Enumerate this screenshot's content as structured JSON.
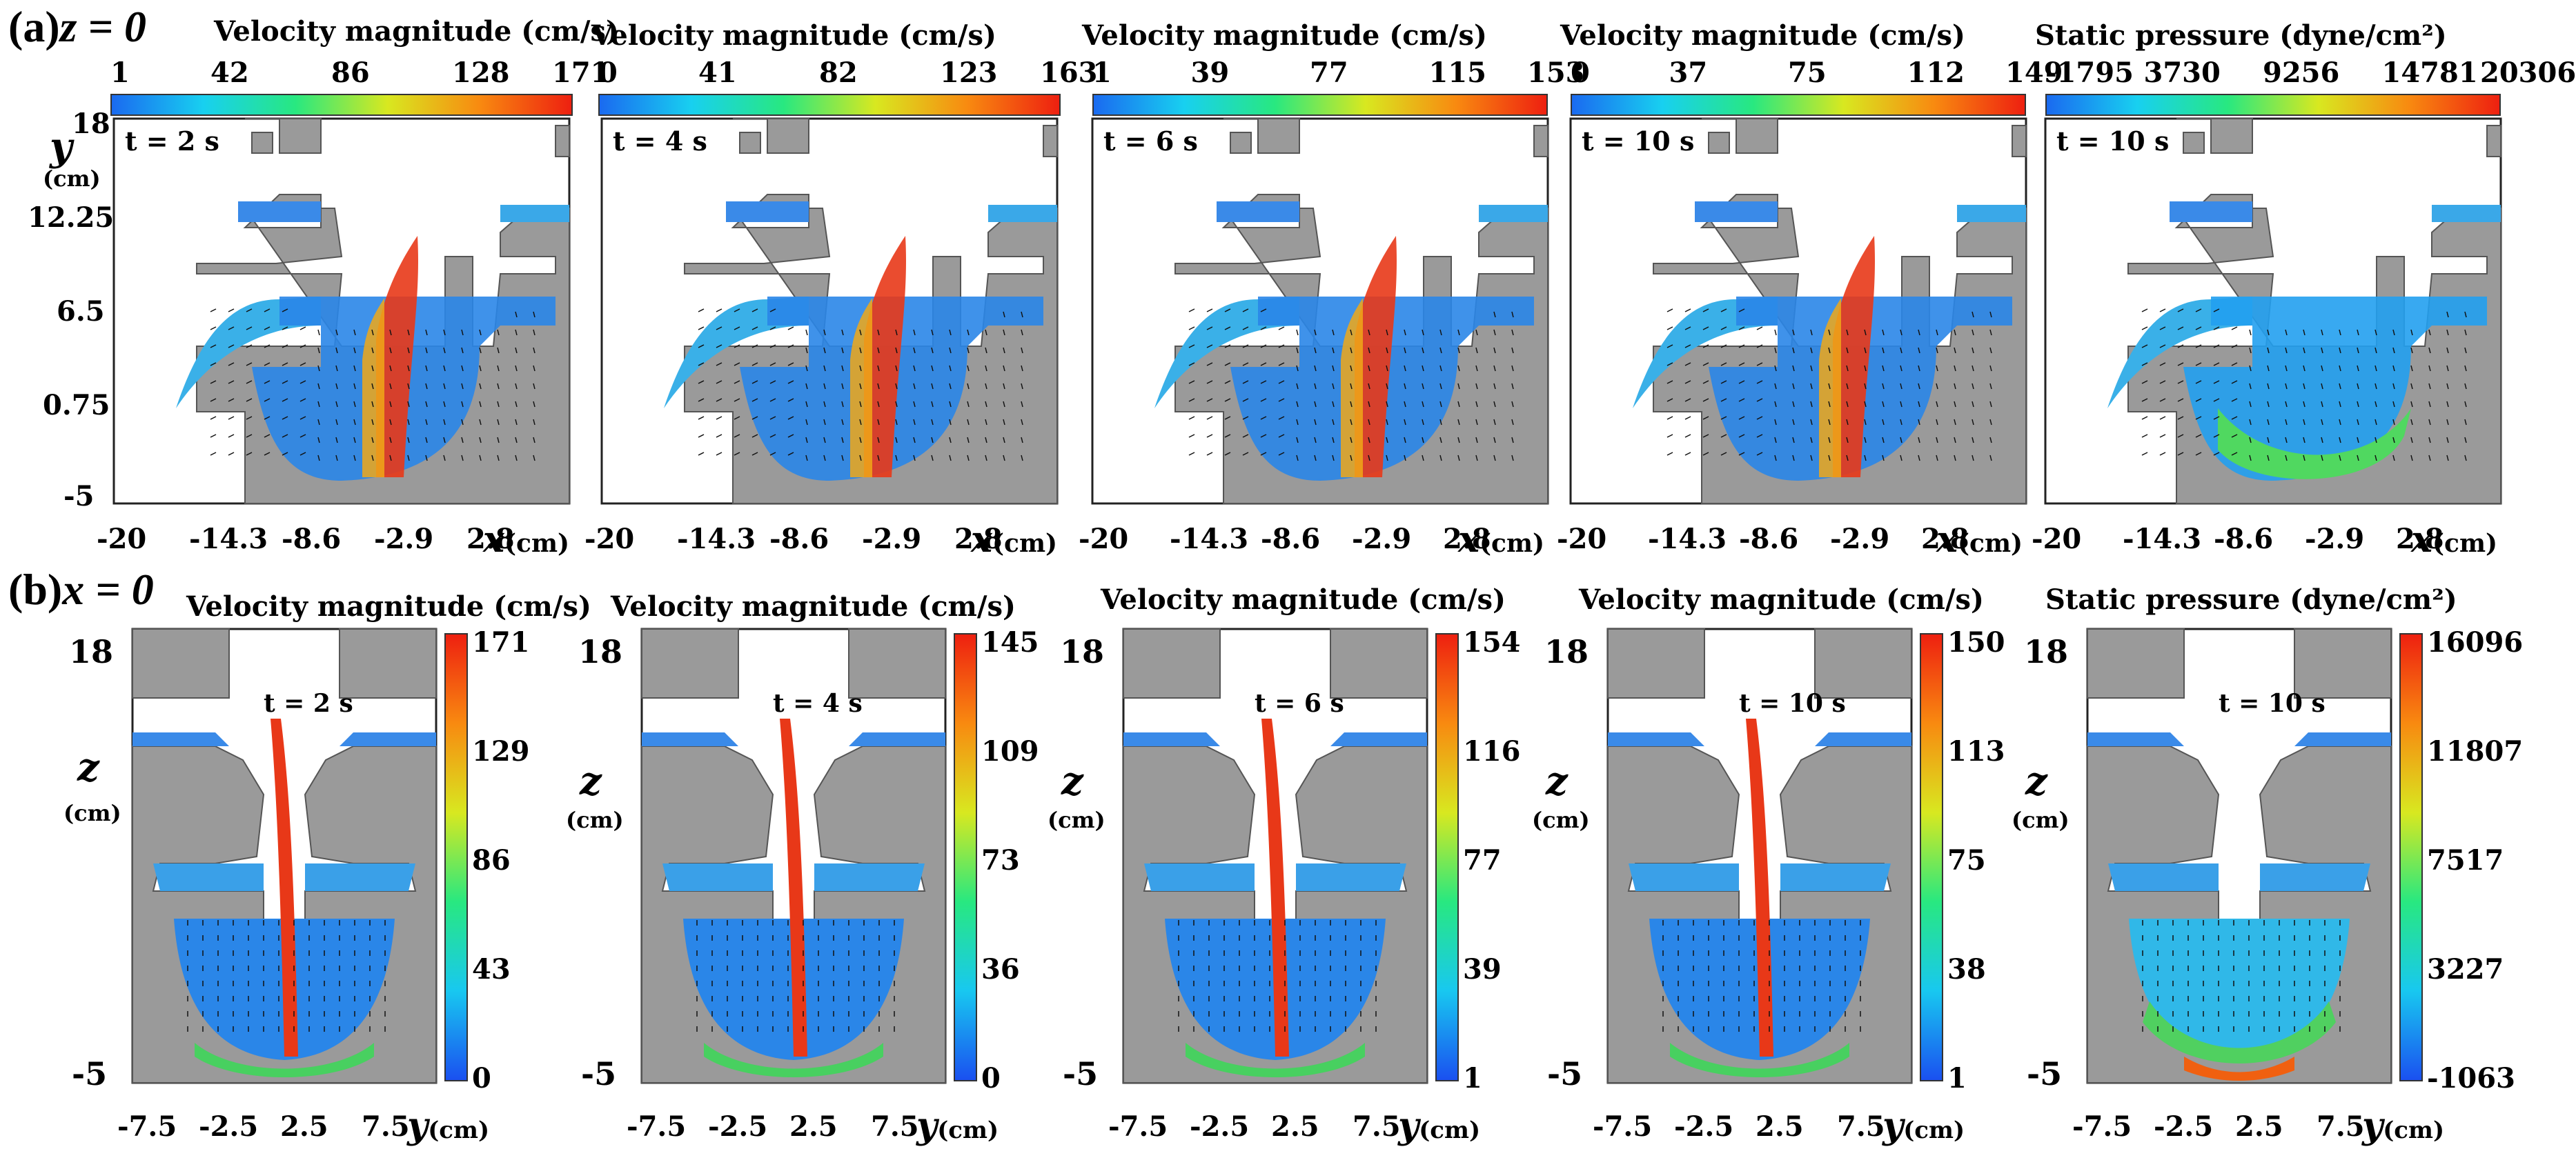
{
  "row_a": {
    "label": "(a)",
    "plane": "z = 0",
    "x_axis_label": "x",
    "x_axis_unit": "(cm)",
    "y_axis_label": "y",
    "y_axis_unit": "(cm)",
    "y_ticks": [
      "18",
      "12.25",
      "6.5",
      "0.75",
      "-5"
    ],
    "x_ticks": [
      "-20",
      "-14.3",
      "-8.6",
      "-2.9",
      "2.8"
    ],
    "panels": [
      {
        "title": "Velocity magnitude (cm/s)",
        "scale": [
          "1",
          "42",
          "86",
          "128",
          "171"
        ],
        "time": "t = 2 s",
        "kind": "velocity"
      },
      {
        "title": "Velocity magnitude (cm/s)",
        "scale": [
          "0",
          "41",
          "82",
          "123",
          "163"
        ],
        "time": "t = 4 s",
        "kind": "velocity"
      },
      {
        "title": "Velocity magnitude (cm/s)",
        "scale": [
          "1",
          "39",
          "77",
          "115",
          "153"
        ],
        "time": "t = 6 s",
        "kind": "velocity"
      },
      {
        "title": "Velocity magnitude (cm/s)",
        "scale": [
          "0",
          "37",
          "75",
          "112",
          "149"
        ],
        "time": "t = 10 s",
        "kind": "velocity"
      },
      {
        "title": "Static pressure (dyne/cm²)",
        "scale": [
          "-1795",
          "3730",
          "9256",
          "14781",
          "20306"
        ],
        "time": "t = 10 s",
        "kind": "pressure"
      }
    ]
  },
  "row_b": {
    "label": "(b)",
    "plane": "x = 0",
    "x_axis_label": "y",
    "x_axis_unit": "(cm)",
    "z_axis_label": "z",
    "z_axis_unit": "(cm)",
    "z_ticks": [
      "18",
      "-5"
    ],
    "x_ticks": [
      "-7.5",
      "-2.5",
      "2.5",
      "7.5"
    ],
    "panels": [
      {
        "title": "Velocity magnitude (cm/s)",
        "scale": [
          "171",
          "129",
          "86",
          "43",
          "0"
        ],
        "time": "t = 2 s",
        "kind": "velocity"
      },
      {
        "title": "Velocity magnitude (cm/s)",
        "scale": [
          "145",
          "109",
          "73",
          "36",
          "0"
        ],
        "time": "t = 4 s",
        "kind": "velocity"
      },
      {
        "title": "Velocity magnitude (cm/s)",
        "scale": [
          "154",
          "116",
          "77",
          "39",
          "1"
        ],
        "time": "t = 6 s",
        "kind": "velocity"
      },
      {
        "title": "Velocity magnitude (cm/s)",
        "scale": [
          "150",
          "113",
          "75",
          "38",
          "1"
        ],
        "time": "t = 10 s",
        "kind": "velocity"
      },
      {
        "title": "Static pressure (dyne/cm²)",
        "scale": [
          "16096",
          "11807",
          "7517",
          "3227",
          "-1063"
        ],
        "time": "t = 10 s",
        "kind": "pressure"
      }
    ]
  },
  "colors": {
    "geometry_gray": "#9a9a9a",
    "fluid_blue": "#2f7fe0",
    "colormap": [
      "#1040e0",
      "#10c8f0",
      "#20e070",
      "#e0e020",
      "#f06010",
      "#e01010"
    ]
  }
}
